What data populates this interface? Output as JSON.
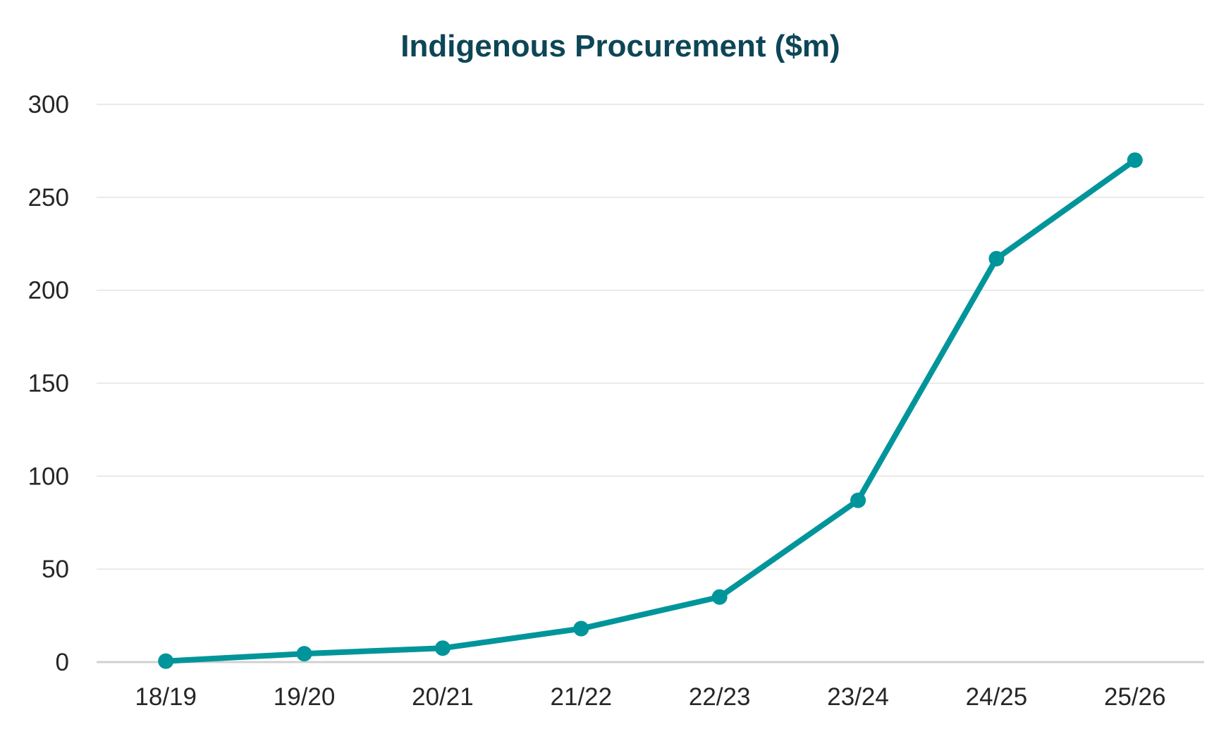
{
  "chart_data": {
    "type": "line",
    "title": "Indigenous Procurement ($m)",
    "xlabel": "",
    "ylabel": "",
    "categories": [
      "18/19",
      "19/20",
      "20/21",
      "21/22",
      "22/23",
      "23/24",
      "24/25",
      "25/26"
    ],
    "series": [
      {
        "name": "Indigenous Procurement",
        "values": [
          0.5,
          4.5,
          7.5,
          18,
          35,
          87,
          217,
          270
        ],
        "color": "#00959a"
      }
    ],
    "ylim": [
      0,
      300
    ],
    "yticks": [
      0,
      50,
      100,
      150,
      200,
      250,
      300
    ],
    "grid": true,
    "legend": "none"
  }
}
